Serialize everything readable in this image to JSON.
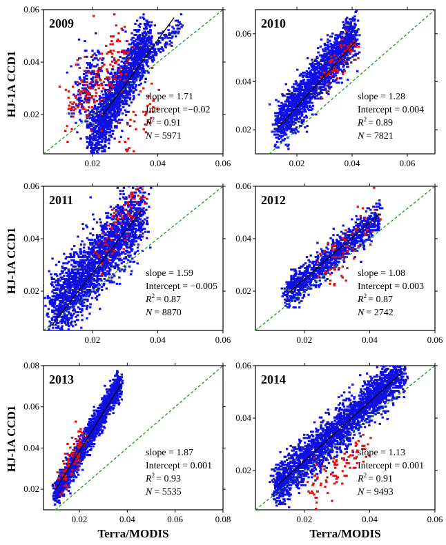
{
  "figure": {
    "y_axis_label": "HJ-1A CCD1",
    "x_axis_label": "Terra/MODIS"
  },
  "chart_data": [
    {
      "type": "scatter",
      "panel_label": "2009",
      "xlim": [
        0.005,
        0.06
      ],
      "ylim": [
        0.005,
        0.06
      ],
      "xticks": [
        "0.02",
        "0.04",
        "0.06"
      ],
      "yticks": [
        "0.02",
        "0.04",
        "0.06"
      ],
      "stats": {
        "slope": "slope = 1.71",
        "intercept": "Intercept =−0.02",
        "r2_value": "= 0.91",
        "n_value": "= 5971"
      },
      "fit": {
        "slope": 1.71,
        "intercept": -0.02,
        "x_range": [
          0.023,
          0.045
        ]
      },
      "colors": {
        "main": "#1010e0",
        "outlier": "#e01010",
        "fit": "#000000",
        "reference": "#2a9a2a"
      },
      "clusters": [
        {
          "role": "main",
          "count": 1700,
          "x_range": [
            0.02,
            0.037
          ],
          "y_range": [
            0.01,
            0.049
          ],
          "spread": 0.005,
          "seed": 11
        },
        {
          "role": "main",
          "count": 120,
          "x_range": [
            0.037,
            0.047
          ],
          "y_range": [
            0.043,
            0.054
          ],
          "spread": 0.002,
          "seed": 12
        },
        {
          "role": "main",
          "count": 200,
          "x_range": [
            0.015,
            0.022
          ],
          "y_range": [
            0.021,
            0.04
          ],
          "spread": 0.006,
          "seed": 13
        },
        {
          "role": "outlier",
          "count": 180,
          "x_range": [
            0.013,
            0.03
          ],
          "y_range": [
            0.02,
            0.046
          ],
          "spread": 0.006,
          "seed": 14
        },
        {
          "role": "outlier",
          "count": 40,
          "x_range": [
            0.029,
            0.04
          ],
          "y_range": [
            0.01,
            0.028
          ],
          "spread": 0.004,
          "seed": 15
        }
      ]
    },
    {
      "type": "scatter",
      "panel_label": "2010",
      "xlim": [
        0.005,
        0.07
      ],
      "ylim": [
        0.01,
        0.07
      ],
      "xticks": [
        "0.02",
        "0.04",
        "0.06"
      ],
      "yticks": [
        "0.02",
        "0.04",
        "0.06"
      ],
      "stats": {
        "slope": "slope = 1.28",
        "intercept": "Intercept = 0.004",
        "r2_value": "= 0.89",
        "n_value": "= 7821"
      },
      "fit": {
        "slope": 1.28,
        "intercept": 0.004,
        "x_range": [
          0.013,
          0.041
        ]
      },
      "colors": {
        "main": "#1010e0",
        "outlier": "#e01010",
        "fit": "#000000",
        "reference": "#2a9a2a"
      },
      "clusters": [
        {
          "role": "main",
          "count": 2000,
          "x_range": [
            0.013,
            0.041
          ],
          "y_range": [
            0.021,
            0.06
          ],
          "spread": 0.0045,
          "seed": 21
        },
        {
          "role": "outlier",
          "count": 60,
          "x_range": [
            0.03,
            0.042
          ],
          "y_range": [
            0.04,
            0.056
          ],
          "spread": 0.004,
          "seed": 22
        }
      ]
    },
    {
      "type": "scatter",
      "panel_label": "2011",
      "xlim": [
        0.005,
        0.06
      ],
      "ylim": [
        0.005,
        0.06
      ],
      "xticks": [
        "0.02",
        "0.04",
        "0.06"
      ],
      "yticks": [
        "0.02",
        "0.04",
        "0.06"
      ],
      "stats": {
        "slope": "slope = 1.59",
        "intercept": "Intercept = −0.005",
        "r2_value": "= 0.87",
        "n_value": "= 8870"
      },
      "fit": {
        "slope": 1.59,
        "intercept": -0.005,
        "x_range": [
          0.008,
          0.035
        ]
      },
      "colors": {
        "main": "#1010e0",
        "outlier": "#e01010",
        "fit": "#000000",
        "reference": "#2a9a2a"
      },
      "clusters": [
        {
          "role": "main",
          "count": 2400,
          "x_range": [
            0.008,
            0.035
          ],
          "y_range": [
            0.012,
            0.05
          ],
          "spread": 0.006,
          "seed": 31
        },
        {
          "role": "outlier",
          "count": 70,
          "x_range": [
            0.022,
            0.035
          ],
          "y_range": [
            0.035,
            0.057
          ],
          "spread": 0.005,
          "seed": 32
        }
      ]
    },
    {
      "type": "scatter",
      "panel_label": "2012",
      "xlim": [
        0.005,
        0.06
      ],
      "ylim": [
        0.005,
        0.06
      ],
      "xticks": [
        "0.02",
        "0.04",
        "0.06"
      ],
      "yticks": [
        "0.02",
        "0.04",
        "0.06"
      ],
      "stats": {
        "slope": "slope = 1.08",
        "intercept": "Intercept = 0.003",
        "r2_value": "= 0.87",
        "n_value": "= 2742"
      },
      "fit": {
        "slope": 1.08,
        "intercept": 0.003,
        "x_range": [
          0.014,
          0.043
        ]
      },
      "colors": {
        "main": "#1010e0",
        "outlier": "#e01010",
        "fit": "#000000",
        "reference": "#2a9a2a"
      },
      "clusters": [
        {
          "role": "main",
          "count": 1100,
          "x_range": [
            0.014,
            0.043
          ],
          "y_range": [
            0.018,
            0.048
          ],
          "spread": 0.003,
          "seed": 41
        },
        {
          "role": "outlier",
          "count": 60,
          "x_range": [
            0.025,
            0.042
          ],
          "y_range": [
            0.028,
            0.048
          ],
          "spread": 0.005,
          "seed": 42
        }
      ]
    },
    {
      "type": "scatter",
      "panel_label": "2013",
      "xlim": [
        0.005,
        0.08
      ],
      "ylim": [
        0.01,
        0.08
      ],
      "xticks": [
        "0.02",
        "0.04",
        "0.06",
        "0.08"
      ],
      "yticks": [
        "0.02",
        "0.04",
        "0.06",
        "0.08"
      ],
      "stats": {
        "slope": "slope = 1.87",
        "intercept": "Intercept = 0.001",
        "r2_value": "= 0.93",
        "n_value": "= 5535"
      },
      "fit": {
        "slope": 1.87,
        "intercept": 0.001,
        "x_range": [
          0.01,
          0.038
        ]
      },
      "colors": {
        "main": "#1010e0",
        "outlier": "#e01010",
        "fit": "#000000",
        "reference": "#2a9a2a"
      },
      "clusters": [
        {
          "role": "main",
          "count": 1700,
          "x_range": [
            0.01,
            0.037
          ],
          "y_range": [
            0.017,
            0.072
          ],
          "spread": 0.003,
          "seed": 51
        },
        {
          "role": "outlier",
          "count": 80,
          "x_range": [
            0.011,
            0.022
          ],
          "y_range": [
            0.02,
            0.046
          ],
          "spread": 0.005,
          "seed": 52
        }
      ]
    },
    {
      "type": "scatter",
      "panel_label": "2014",
      "xlim": [
        0.005,
        0.06
      ],
      "ylim": [
        0.005,
        0.06
      ],
      "xticks": [
        "0.02",
        "0.04",
        "0.06"
      ],
      "yticks": [
        "0.02",
        "0.04",
        "0.06"
      ],
      "stats": {
        "slope": "slope = 1.13",
        "intercept": "Intercept = 0.001",
        "r2_value": "= 0.91",
        "n_value": "= 9493"
      },
      "fit": {
        "slope": 1.13,
        "intercept": 0.001,
        "x_range": [
          0.012,
          0.05
        ]
      },
      "colors": {
        "main": "#1010e0",
        "outlier": "#e01010",
        "fit": "#000000",
        "reference": "#2a9a2a"
      },
      "clusters": [
        {
          "role": "main",
          "count": 2600,
          "x_range": [
            0.011,
            0.05
          ],
          "y_range": [
            0.013,
            0.058
          ],
          "spread": 0.004,
          "seed": 61
        },
        {
          "role": "outlier",
          "count": 90,
          "x_range": [
            0.022,
            0.04
          ],
          "y_range": [
            0.011,
            0.032
          ],
          "spread": 0.004,
          "seed": 62
        }
      ]
    }
  ]
}
